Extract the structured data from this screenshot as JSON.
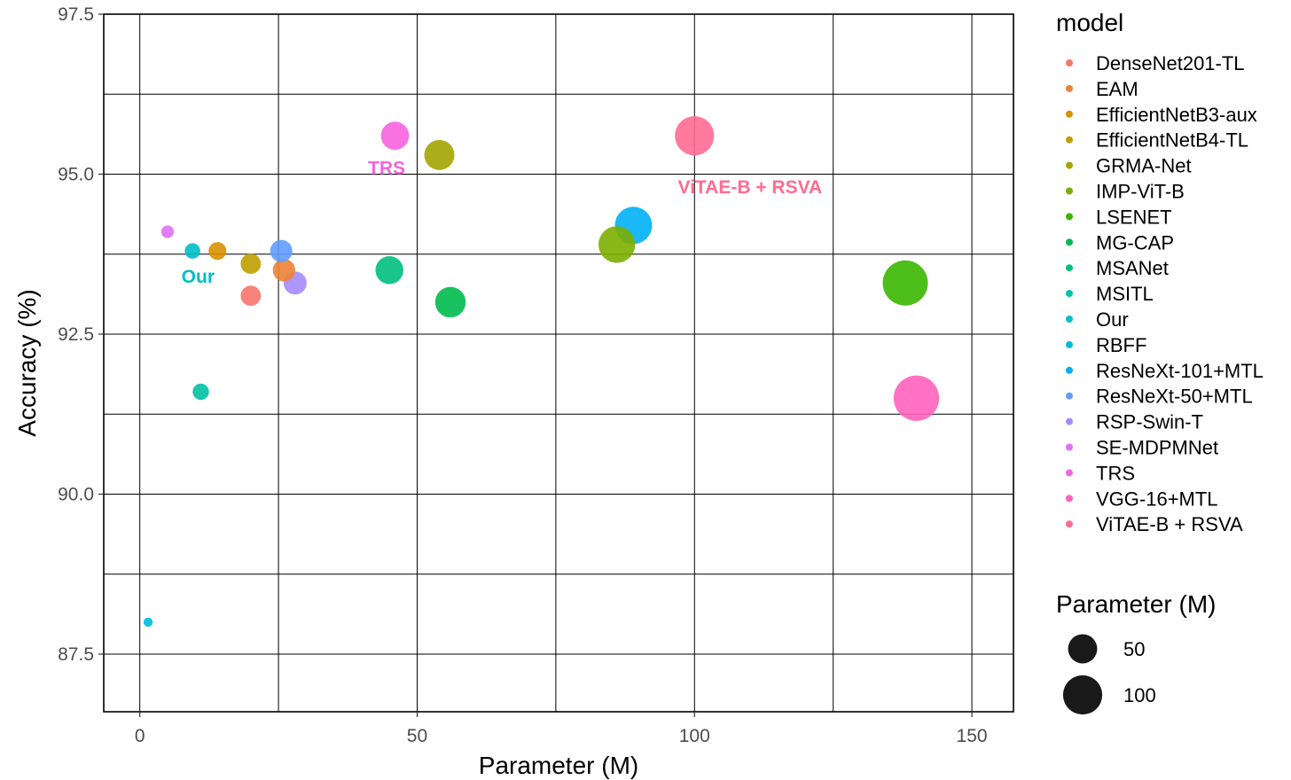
{
  "chart_data": {
    "type": "scatter",
    "xlabel": "Parameter (M)",
    "ylabel": "Accuracy (%)",
    "xlim": [
      -6.5,
      157.5
    ],
    "ylim": [
      86.6,
      97.5
    ],
    "x_ticks": [
      0,
      50,
      100,
      150
    ],
    "x_tick_labels": [
      "0",
      "50",
      "100",
      "150"
    ],
    "y_ticks": [
      87.5,
      90.0,
      92.5,
      95.0,
      97.5
    ],
    "y_tick_labels": [
      "87.5",
      "90.0",
      "92.5",
      "95.0",
      "97.5"
    ],
    "x_minor_grid": [
      25,
      75,
      125
    ],
    "y_minor_grid": [
      88.75,
      91.25,
      93.75,
      96.25
    ],
    "grid": true,
    "legend_position": "right",
    "color_legend_title": "model",
    "size_legend_title": "Parameter (M)",
    "size_legend_entries": [
      {
        "label": "50",
        "value": 50
      },
      {
        "label": "100",
        "value": 100
      }
    ],
    "series": [
      {
        "name": "DenseNet201-TL",
        "color": "#F8766D",
        "points": [
          {
            "x": 20.0,
            "y": 93.1
          }
        ]
      },
      {
        "name": "EAM",
        "color": "#EB8335",
        "points": [
          {
            "x": 26.0,
            "y": 93.5
          }
        ]
      },
      {
        "name": "EfficientNetB3-aux",
        "color": "#D89000",
        "points": [
          {
            "x": 14.0,
            "y": 93.8
          }
        ]
      },
      {
        "name": "EfficientNetB4-TL",
        "color": "#BF9E00",
        "points": [
          {
            "x": 20.0,
            "y": 93.6
          }
        ]
      },
      {
        "name": "GRMA-Net",
        "color": "#A3A500",
        "points": [
          {
            "x": 54.0,
            "y": 95.3
          }
        ]
      },
      {
        "name": "IMP-ViT-B",
        "color": "#7CAE00",
        "points": [
          {
            "x": 86.0,
            "y": 93.9
          }
        ]
      },
      {
        "name": "LSENET",
        "color": "#39B600",
        "points": [
          {
            "x": 138.0,
            "y": 93.3
          }
        ]
      },
      {
        "name": "MG-CAP",
        "color": "#00BB4E",
        "points": [
          {
            "x": 56.0,
            "y": 93.0
          }
        ]
      },
      {
        "name": "MSANet",
        "color": "#00BF7D",
        "points": [
          {
            "x": 45.0,
            "y": 93.5
          }
        ]
      },
      {
        "name": "MSITL",
        "color": "#00C1A3",
        "points": [
          {
            "x": 11.0,
            "y": 91.6
          }
        ]
      },
      {
        "name": "Our",
        "color": "#00BFC4",
        "points": [
          {
            "x": 9.5,
            "y": 93.8
          }
        ]
      },
      {
        "name": "RBFF",
        "color": "#00BAE0",
        "points": [
          {
            "x": 1.5,
            "y": 88.0
          }
        ]
      },
      {
        "name": "ResNeXt-101+MTL",
        "color": "#00B0F6",
        "points": [
          {
            "x": 89.0,
            "y": 94.2
          }
        ]
      },
      {
        "name": "ResNeXt-50+MTL",
        "color": "#619CFF",
        "points": [
          {
            "x": 25.5,
            "y": 93.8
          }
        ]
      },
      {
        "name": "RSP-Swin-T",
        "color": "#A58AFF",
        "points": [
          {
            "x": 28.0,
            "y": 93.3
          }
        ]
      },
      {
        "name": "SE-MDPMNet",
        "color": "#DF70F8",
        "points": [
          {
            "x": 5.0,
            "y": 94.1
          }
        ]
      },
      {
        "name": "TRS",
        "color": "#F763E0",
        "points": [
          {
            "x": 46.0,
            "y": 95.6
          }
        ]
      },
      {
        "name": "VGG-16+MTL",
        "color": "#FF62BC",
        "points": [
          {
            "x": 140.0,
            "y": 91.5
          }
        ]
      },
      {
        "name": "ViTAE-B + RSVA",
        "color": "#FF6C91",
        "points": [
          {
            "x": 100.0,
            "y": 95.6
          }
        ]
      }
    ],
    "annotations": [
      {
        "text": "TRS",
        "x": 44.5,
        "y": 95.1,
        "color": "#F763E0"
      },
      {
        "text": "ViTAE-B + RSVA",
        "x": 110.0,
        "y": 94.8,
        "color": "#FF6C91"
      },
      {
        "text": "Our",
        "x": 10.5,
        "y": 93.4,
        "color": "#00BFC4"
      }
    ]
  }
}
